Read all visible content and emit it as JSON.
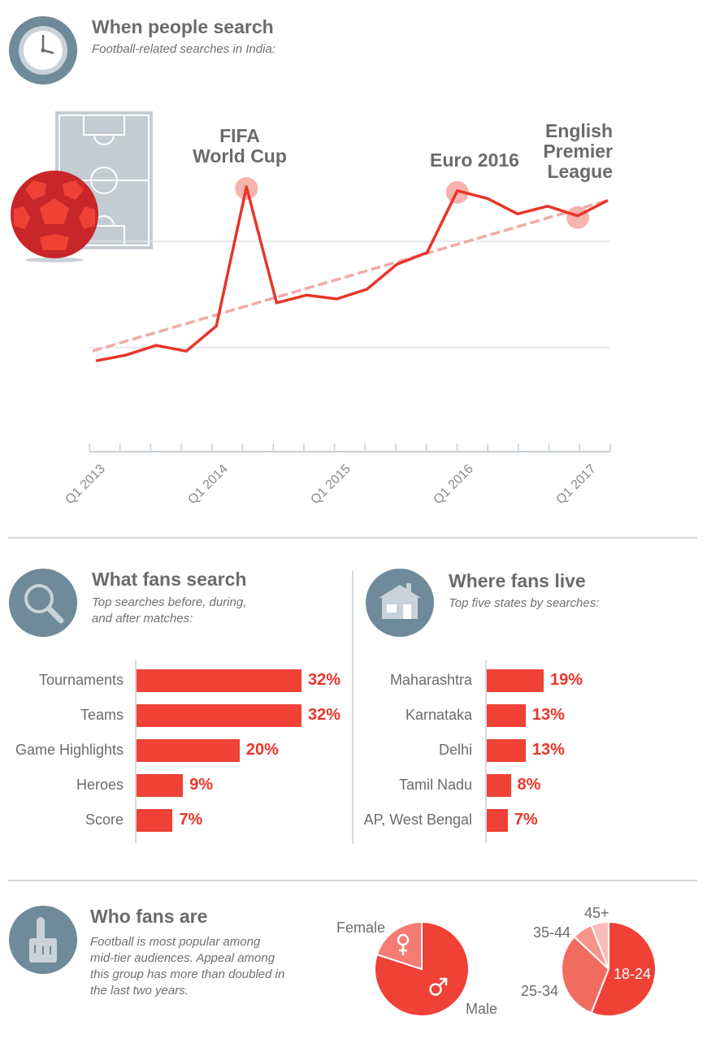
{
  "section1": {
    "title": "When people search",
    "subtitle": "Football-related searches in India:",
    "icon": "clock-icon"
  },
  "annotations": {
    "fifa": "FIFA\nWorld Cup",
    "euro": "Euro 2016",
    "epl": "English\nPremier\nLeague"
  },
  "chart_data": [
    {
      "type": "line",
      "title": "",
      "xlabel": "",
      "ylabel": "",
      "x_ticks": [
        "Q1 2013",
        "Q1 2014",
        "Q1 2015",
        "Q1 2016",
        "Q1 2017"
      ],
      "grid": true,
      "ylim": [
        0,
        100
      ],
      "series": [
        {
          "values": [
            10,
            13,
            18,
            15,
            28,
            100,
            40,
            44,
            42,
            47,
            60,
            66,
            98,
            94,
            86,
            90,
            85,
            93
          ],
          "color": "#e8352a"
        },
        {
          "trend": true,
          "values": [
            13,
            93
          ],
          "color": "#f2aaa5"
        }
      ],
      "highlights": [
        5,
        12,
        16
      ]
    },
    {
      "type": "bar",
      "orientation": "horizontal",
      "title": "What fans search",
      "subtitle": "Top searches before, during, and after matches:",
      "categories": [
        "Tournaments",
        "Teams",
        "Game Highlights",
        "Heroes",
        "Score"
      ],
      "values": [
        32,
        32,
        20,
        9,
        7
      ],
      "value_labels": [
        "32%",
        "32%",
        "20%",
        "9%",
        "7%"
      ],
      "color": "#ef4136"
    },
    {
      "type": "bar",
      "orientation": "horizontal",
      "title": "Where fans live",
      "subtitle": "Top five states by searches:",
      "categories": [
        "Maharashtra",
        "Karnataka",
        "Delhi",
        "Tamil Nadu",
        "AP, West Bengal"
      ],
      "values": [
        19,
        13,
        13,
        8,
        7
      ],
      "value_labels": [
        "19%",
        "13%",
        "13%",
        "8%",
        "7%"
      ],
      "color": "#ef4136"
    },
    {
      "type": "pie",
      "labels": [
        "Male",
        "Female"
      ],
      "values": [
        80,
        20
      ],
      "colors": [
        "#ef4136",
        "#f47c72"
      ]
    },
    {
      "type": "pie",
      "labels": [
        "18-24",
        "25-34",
        "35-44",
        "45+"
      ],
      "values": [
        56,
        31,
        7,
        6
      ],
      "colors": [
        "#ef4136",
        "#f26b60",
        "#f6958c",
        "#f9bdb7"
      ]
    }
  ],
  "section2": {
    "icon": "magnifier-icon"
  },
  "section3": {
    "icon": "house-icon"
  },
  "section4": {
    "title": "Who fans are",
    "subtitle": "Football is most popular among mid-tier audiences. Appeal among this group has more than doubled in the last two years.",
    "icon": "hand-icon"
  },
  "decor": {
    "soccer_field": "soccer-field-icon",
    "soccer_ball": "soccer-ball-icon"
  }
}
